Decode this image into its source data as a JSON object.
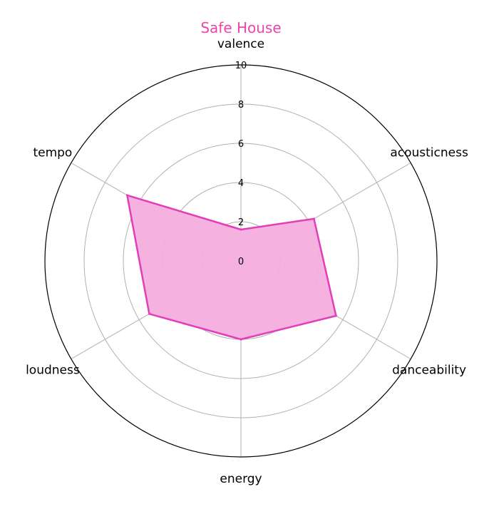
{
  "chart_data": {
    "type": "radar",
    "title": "Safe House",
    "axes": [
      "valence",
      "acousticness",
      "danceability",
      "energy",
      "loudness",
      "tempo"
    ],
    "series": [
      {
        "values": [
          1.6,
          4.3,
          5.6,
          4.0,
          5.4,
          6.7
        ]
      }
    ],
    "rlim": [
      0,
      10
    ],
    "rticks": [
      "0",
      "2",
      "4",
      "6",
      "8",
      "10"
    ],
    "grid": true,
    "colors": {
      "title": "#ee44aa",
      "series_line": "#e33db8",
      "series_fill": "#f4aedf"
    }
  }
}
